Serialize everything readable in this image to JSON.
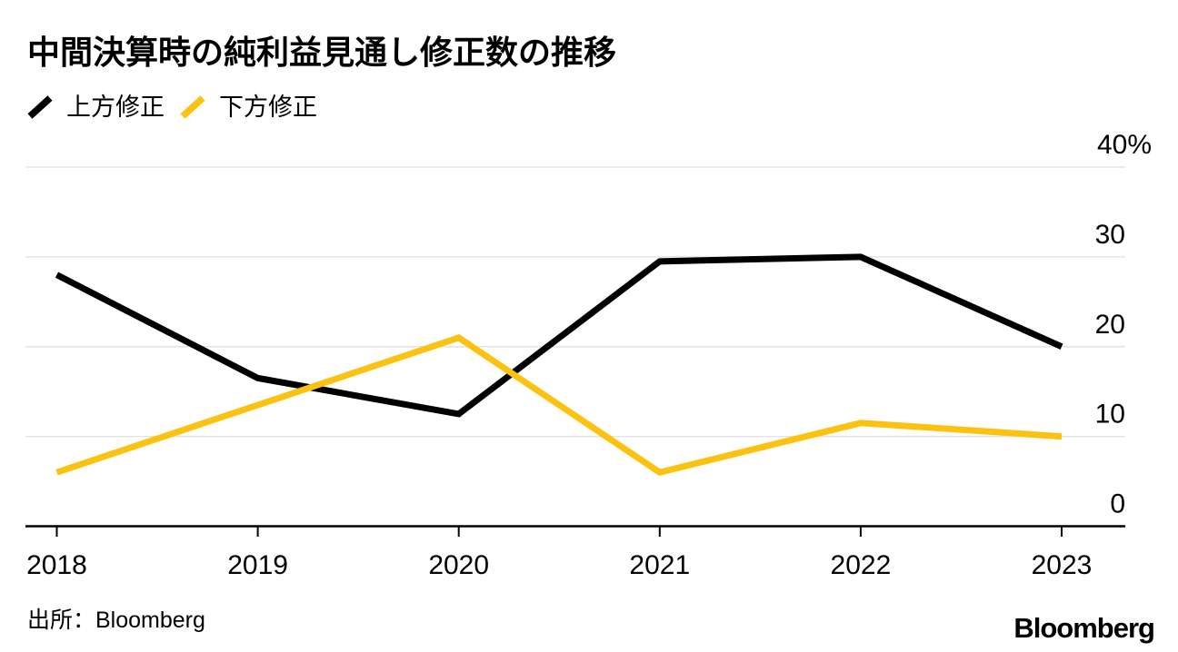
{
  "title": "中間決算時の純利益見通し修正数の推移",
  "source": "出所：Bloomberg",
  "logo": "Bloomberg",
  "colors": {
    "up": "#000000",
    "down": "#FCC212",
    "grid": "#E3E3E3",
    "axis": "#000000"
  },
  "chart_data": {
    "type": "line",
    "x": [
      2018,
      2019,
      2020,
      2021,
      2022,
      2023
    ],
    "xtick_labels": [
      "2018",
      "2019",
      "2020",
      "2021",
      "2022",
      "2023"
    ],
    "series": [
      {
        "name": "上方修正",
        "color_key": "up",
        "values": [
          28,
          16.5,
          12.5,
          29.5,
          30,
          20
        ]
      },
      {
        "name": "下方修正",
        "color_key": "down",
        "values": [
          6,
          13.5,
          21,
          6,
          11.5,
          10
        ]
      }
    ],
    "yticks": [
      0,
      10,
      20,
      30,
      40
    ],
    "ytick_labels": [
      "0",
      "10",
      "20",
      "30",
      "40%"
    ],
    "ylim": [
      0,
      40
    ],
    "ylabel_suffix": "%",
    "grid": "horizontal",
    "legend_position": "top-left"
  }
}
